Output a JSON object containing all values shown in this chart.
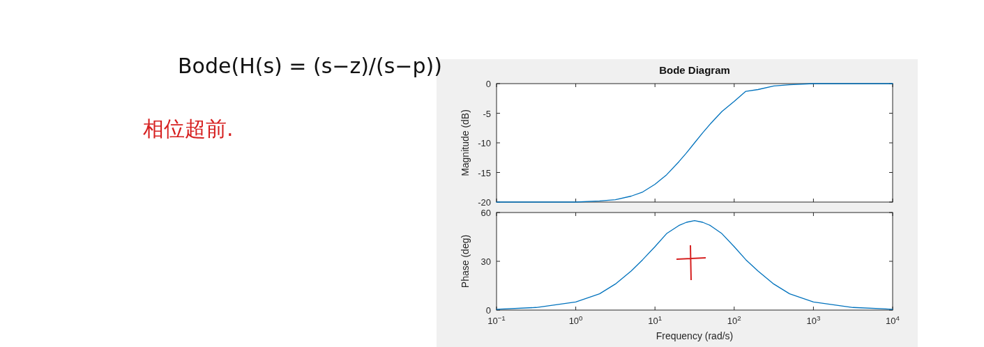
{
  "chart_data": [
    {
      "type": "other",
      "annotations": [
        "Bode(H(s) = (s−z)/(s−p))",
        "相位超前."
      ]
    },
    {
      "type": "line",
      "title": "Bode Diagram",
      "ylabel": "Magnitude (dB)",
      "log": "x",
      "grid": false,
      "tick_labels": "y",
      "xlim": [
        0.1,
        10000
      ],
      "xticks": [
        {
          "value": 0.1,
          "label": null
        },
        {
          "value": 1,
          "label": null
        },
        {
          "value": 10,
          "label": null
        },
        {
          "value": 100,
          "label": null
        },
        {
          "value": 1000,
          "label": null
        },
        {
          "value": 10000,
          "label": null
        }
      ],
      "ylim": [
        -20,
        0
      ],
      "yticks": [
        -20,
        -15,
        -10,
        -5,
        0
      ],
      "series": [
        {
          "color": "#0072bd",
          "x": [
            0.1,
            0.316,
            1,
            2,
            3.16,
            5,
            7,
            10,
            14,
            20,
            25,
            31.6,
            40,
            50,
            70,
            100,
            140,
            200,
            316,
            500,
            1000,
            3162,
            10000
          ],
          "values": [
            -20,
            -20,
            -20,
            -19.8,
            -19.6,
            -19,
            -18.3,
            -17,
            -15.4,
            -13.2,
            -11.7,
            -10,
            -8.3,
            -6.8,
            -4.7,
            -3,
            -1.3,
            -1,
            -0.4,
            -0.2,
            0,
            0,
            0
          ]
        }
      ]
    },
    {
      "type": "line",
      "xlabel": "Frequency (rad/s)",
      "ylabel": "Phase (deg)",
      "log": "x",
      "grid": false,
      "xlim": [
        0.1,
        10000
      ],
      "xticks": [
        {
          "value": 0.1,
          "label": "10$^{−1}$"
        },
        {
          "value": 1,
          "label": "10$^{0}$"
        },
        {
          "value": 10,
          "label": "10$^{1}$"
        },
        {
          "value": 100,
          "label": "10$^{2}$"
        },
        {
          "value": 1000,
          "label": "10$^{3}$"
        },
        {
          "value": 10000,
          "label": "10$^{4}$"
        }
      ],
      "ylim": [
        0,
        60
      ],
      "yticks": [
        0,
        30,
        60
      ],
      "series": [
        {
          "color": "#0072bd",
          "x": [
            0.1,
            0.316,
            1,
            2,
            3.16,
            5,
            7,
            10,
            14,
            20,
            25,
            31.6,
            40,
            50,
            70,
            100,
            140,
            200,
            316,
            500,
            1000,
            3162,
            10000
          ],
          "values": [
            0.5,
            1.6,
            5,
            10,
            16,
            24,
            31,
            39,
            47,
            52,
            54,
            55,
            54,
            52,
            47,
            39,
            31,
            24,
            16,
            10,
            5,
            1.6,
            0.5
          ]
        }
      ]
    }
  ]
}
